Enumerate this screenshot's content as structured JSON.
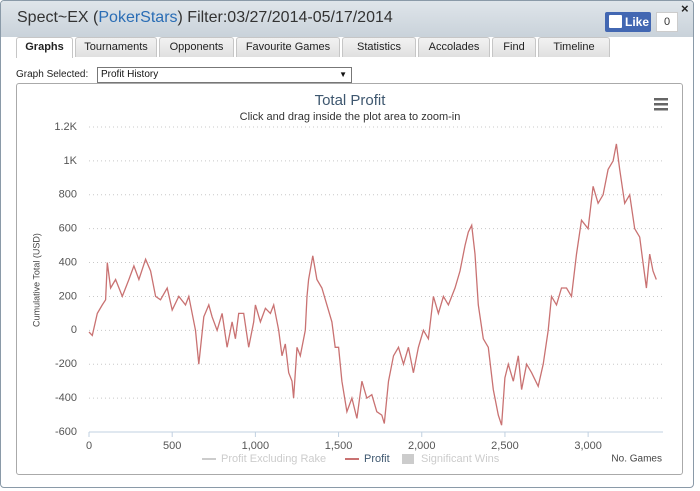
{
  "window": {
    "title_name": "Spect~EX (",
    "title_site": "PokerStars",
    "title_filter": ") Filter:03/27/2014-05/17/2014",
    "like": "Like",
    "like_count": "0",
    "close": "×"
  },
  "tabs": [
    "Graphs",
    "Tournaments",
    "Opponents",
    "Favourite Games",
    "Statistics",
    "Accolades",
    "Find",
    "Timeline"
  ],
  "graph_selected_label": "Graph Selected:",
  "graph_selected": "Profit History",
  "chart_data": {
    "type": "line",
    "title": "Total Profit",
    "subtitle": "Click and drag inside the plot area to zoom-in",
    "y_label": "Cumulative Total (USD)",
    "x_label": "No. Games",
    "xlim": [
      0,
      3450
    ],
    "ylim": [
      -600,
      1200
    ],
    "xticks": [
      0,
      500,
      {
        "value": 1000,
        "label": "1,000"
      },
      {
        "value": 1500,
        "label": "1,500"
      },
      {
        "value": 2000,
        "label": "2,000"
      },
      {
        "value": 2500,
        "label": "2,500"
      },
      {
        "value": 3000,
        "label": "3,000"
      }
    ],
    "yticks": [
      -600,
      -400,
      -200,
      0,
      200,
      400,
      600,
      800,
      {
        "value": 1000,
        "label": "1K"
      },
      {
        "value": 1200,
        "label": "1.2K"
      }
    ],
    "grid": true,
    "hidden_legend_items": [
      {
        "name": "Profit Excluding Rake",
        "color": "#cccccc"
      },
      {
        "name": "Significant Wins",
        "color": "#cccccc"
      }
    ],
    "x": [
      0,
      20,
      50,
      80,
      100,
      110,
      130,
      160,
      200,
      240,
      270,
      300,
      340,
      370,
      400,
      430,
      470,
      500,
      540,
      580,
      600,
      640,
      660,
      690,
      720,
      740,
      770,
      800,
      830,
      860,
      880,
      900,
      930,
      960,
      990,
      1000,
      1030,
      1060,
      1090,
      1110,
      1140,
      1160,
      1180,
      1200,
      1220,
      1230,
      1250,
      1270,
      1300,
      1310,
      1320,
      1345,
      1370,
      1400,
      1430,
      1460,
      1480,
      1500,
      1520,
      1550,
      1580,
      1610,
      1640,
      1670,
      1700,
      1730,
      1760,
      1775,
      1800,
      1830,
      1860,
      1890,
      1920,
      1950,
      1980,
      2010,
      2040,
      2070,
      2100,
      2130,
      2160,
      2200,
      2230,
      2260,
      2280,
      2300,
      2320,
      2340,
      2370,
      2400,
      2430,
      2460,
      2480,
      2500,
      2520,
      2550,
      2580,
      2600,
      2630,
      2660,
      2700,
      2730,
      2760,
      2780,
      2810,
      2840,
      2870,
      2900,
      2930,
      2960,
      3000,
      3030,
      3060,
      3090,
      3120,
      3150,
      3170,
      3190,
      3220,
      3250,
      3280,
      3310,
      3330,
      3350,
      3370,
      3390,
      3410
    ],
    "series": [
      {
        "name": "Profit",
        "color": "#c97272",
        "values": [
          -10,
          -30,
          100,
          150,
          180,
          400,
          250,
          300,
          200,
          300,
          380,
          300,
          420,
          350,
          200,
          180,
          250,
          120,
          200,
          150,
          200,
          0,
          -200,
          80,
          150,
          80,
          0,
          100,
          -100,
          50,
          -50,
          100,
          100,
          -100,
          50,
          150,
          50,
          130,
          100,
          150,
          0,
          -150,
          -80,
          -250,
          -300,
          -400,
          -100,
          -150,
          0,
          200,
          300,
          440,
          300,
          250,
          150,
          50,
          -100,
          -100,
          -300,
          -480,
          -400,
          -520,
          -300,
          -400,
          -380,
          -480,
          -500,
          -550,
          -300,
          -150,
          -100,
          -200,
          -100,
          -250,
          -100,
          0,
          -50,
          200,
          100,
          200,
          150,
          250,
          350,
          500,
          580,
          620,
          450,
          150,
          -50,
          -100,
          -350,
          -500,
          -560,
          -280,
          -200,
          -300,
          -150,
          -350,
          -200,
          -250,
          -330,
          -200,
          0,
          200,
          150,
          250,
          250,
          200,
          450,
          650,
          600,
          850,
          750,
          800,
          950,
          1000,
          1100,
          950,
          750,
          800,
          600,
          550,
          400,
          250,
          450,
          350,
          300
        ]
      }
    ]
  }
}
